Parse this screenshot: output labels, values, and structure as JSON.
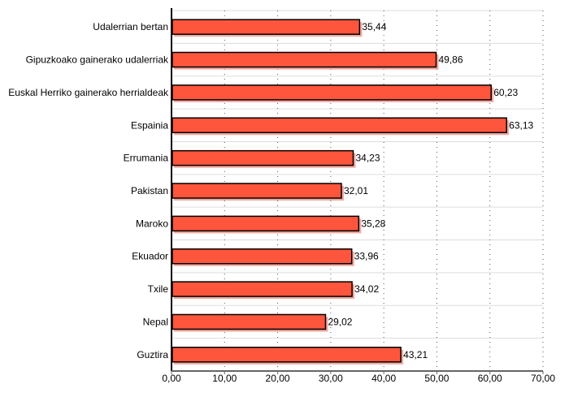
{
  "chart_data": {
    "type": "bar",
    "orientation": "horizontal",
    "categories": [
      "Udalerrian bertan",
      "Gipuzkoako gainerako udalerriak",
      "Euskal Herriko gainerako herrialdeak",
      "Espainia",
      "Errumania",
      "Pakistan",
      "Maroko",
      "Ekuador",
      "Txile",
      "Nepal",
      "Guztira"
    ],
    "values": [
      35.44,
      49.86,
      60.23,
      63.13,
      34.23,
      32.01,
      35.28,
      33.96,
      34.02,
      29.02,
      43.21
    ],
    "value_labels": [
      "35,44",
      "49,86",
      "60,23",
      "63,13",
      "34,23",
      "32,01",
      "35,28",
      "33,96",
      "34,02",
      "29,02",
      "43,21"
    ],
    "xlim": [
      0,
      70
    ],
    "x_ticks": [
      0,
      10,
      20,
      30,
      40,
      50,
      60,
      70
    ],
    "x_tick_labels": [
      "0,00",
      "10,00",
      "20,00",
      "30,00",
      "40,00",
      "50,00",
      "60,00",
      "70,00"
    ],
    "grid": "vertical dotted, horizontal row separators",
    "colors": {
      "bar": "#fe563c",
      "bar_border": "#000000",
      "shadow": "#f0a8a0",
      "grid": "#dddddd"
    }
  }
}
